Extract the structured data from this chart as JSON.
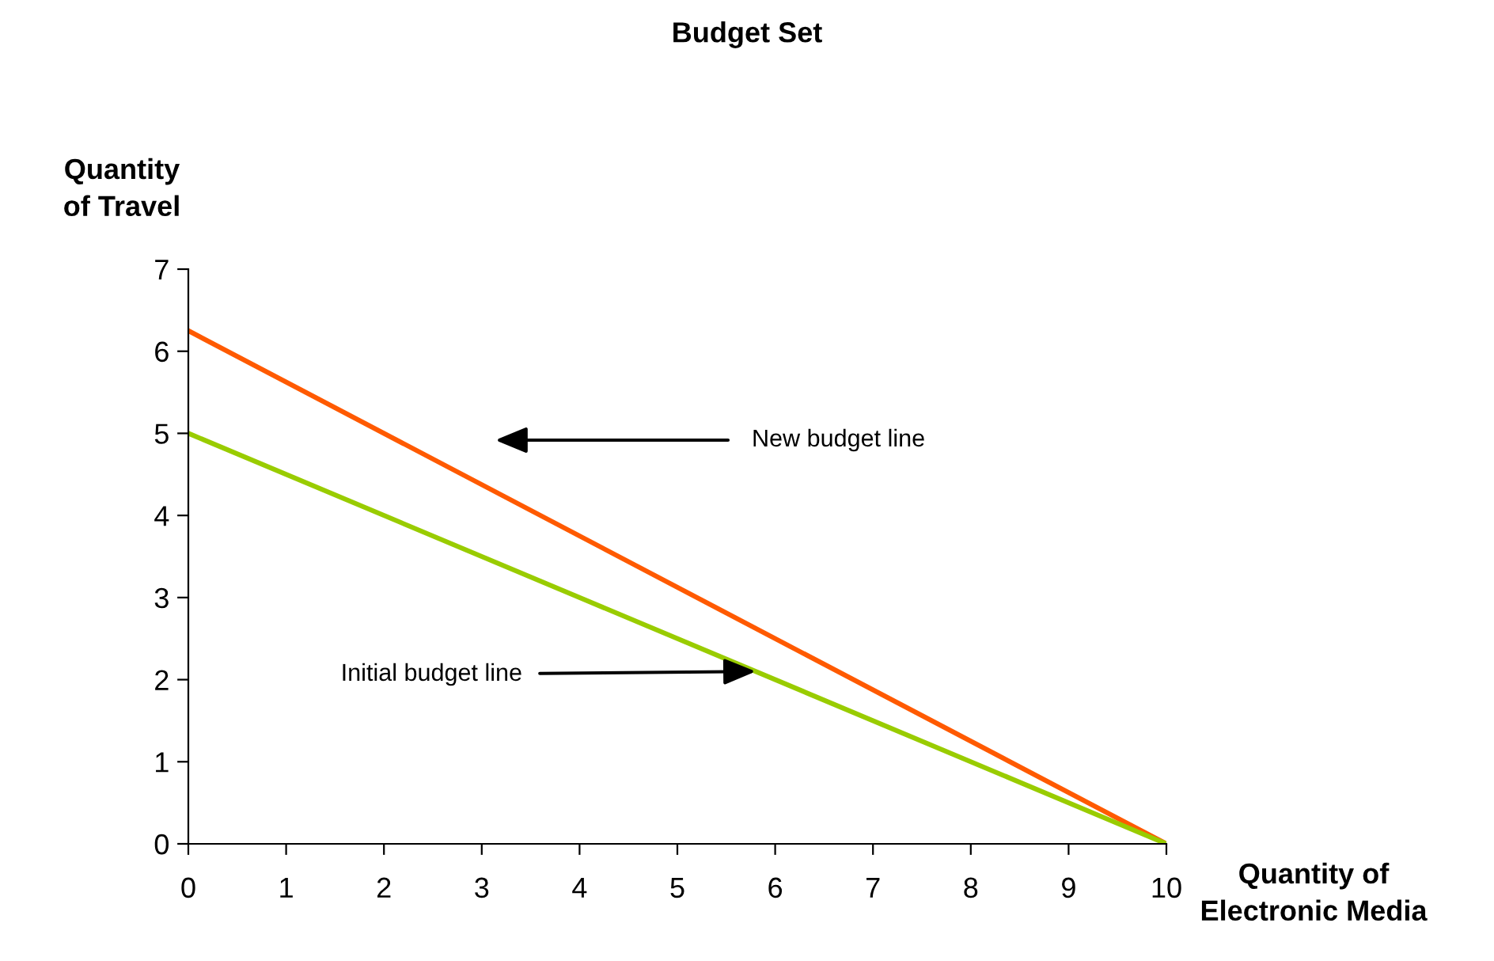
{
  "chart_data": {
    "type": "line",
    "title": "Budget Set",
    "xlabel": "Quantity of\nElectronic Media",
    "ylabel": "Quantity\nof Travel",
    "x": [
      0,
      10
    ],
    "series": [
      {
        "color": "#ff5a00",
        "values": [
          6.25,
          0
        ]
      },
      {
        "color": "#99cc00",
        "values": [
          5,
          0
        ]
      }
    ],
    "annotations": [
      "New budget line",
      {
        "text": "Initial budget line",
        "x": 5.8,
        "y": 2.1
      }
    ],
    "xlim": [
      0,
      10
    ],
    "ylim": [
      0,
      7
    ],
    "xticks": [
      0,
      1,
      2,
      3,
      4,
      5,
      6,
      7,
      8,
      9,
      10
    ],
    "yticks": [
      0,
      1,
      2,
      3,
      4,
      5,
      6,
      7
    ],
    "grid": false,
    "legend": false,
    "marker": "none",
    "line_style": "solid"
  }
}
